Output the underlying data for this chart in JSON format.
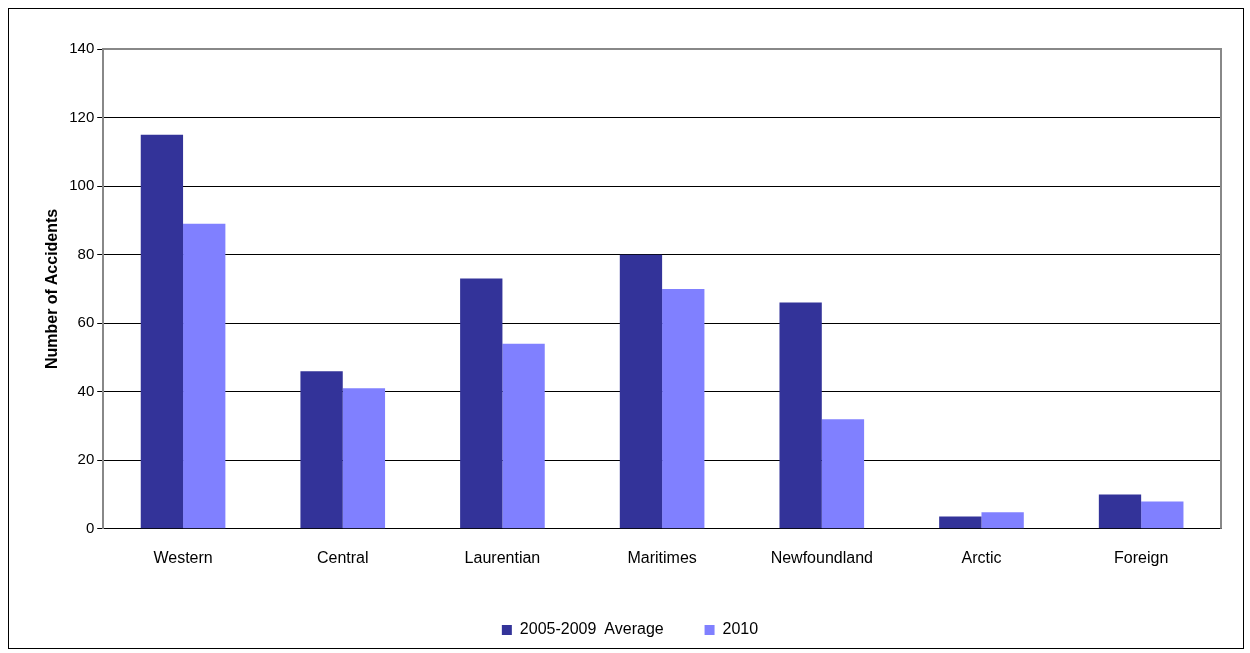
{
  "chart_data": {
    "type": "bar",
    "ylabel": "Number of Accidents",
    "categories": [
      "Western",
      "Central",
      "Laurentian",
      "Maritimes",
      "Newfoundland",
      "Arctic",
      "Foreign"
    ],
    "series": [
      {
        "name": "2005-2009  Average",
        "color": "#333399",
        "values": [
          115,
          46,
          73,
          80,
          66,
          3.6,
          10
        ]
      },
      {
        "name": "2010",
        "color": "#8080ff",
        "values": [
          89,
          41,
          54,
          70,
          32,
          4.8,
          8
        ]
      }
    ],
    "ylim": [
      0,
      140
    ],
    "yticks": [
      0,
      20,
      40,
      60,
      80,
      100,
      120,
      140
    ],
    "grid": "y",
    "legend": "bottom"
  }
}
